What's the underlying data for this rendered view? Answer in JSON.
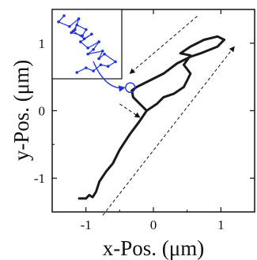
{
  "chart_data": {
    "type": "line",
    "title": "",
    "xlabel": "x-Pos. (μm)",
    "ylabel": "y-Pos. (μm)",
    "xlim": [
      -1.5,
      1.5
    ],
    "ylim": [
      -1.5,
      1.5
    ],
    "grid": false,
    "x_ticks": [
      {
        "value": -1,
        "label": "-1"
      },
      {
        "value": 0,
        "label": "0"
      },
      {
        "value": 1,
        "label": "1"
      }
    ],
    "y_ticks": [
      {
        "value": -1,
        "label": "-1"
      },
      {
        "value": 0,
        "label": "0"
      },
      {
        "value": 1,
        "label": "1"
      }
    ],
    "series": [
      {
        "color": "#1a1a1a",
        "x": [
          -1.1,
          -1.0,
          -0.95,
          -0.9,
          -0.85,
          -0.8,
          -0.7,
          -0.6,
          -0.5,
          -0.35,
          -0.2,
          -0.1,
          0.05,
          0.15,
          0.3,
          0.45,
          0.5,
          0.55,
          0.45,
          0.5,
          0.55,
          0.4,
          0.55,
          0.75,
          0.95,
          1.05,
          0.95,
          0.7,
          0.55,
          0.35,
          0.15,
          -0.05,
          -0.25,
          -0.32,
          -0.3,
          -0.2,
          -0.1
        ],
        "y": [
          -1.3,
          -1.3,
          -1.25,
          -1.28,
          -1.2,
          -1.05,
          -0.9,
          -0.78,
          -0.58,
          -0.35,
          -0.15,
          0.0,
          0.1,
          0.2,
          0.25,
          0.35,
          0.45,
          0.55,
          0.68,
          0.75,
          0.82,
          0.85,
          0.95,
          1.05,
          1.1,
          1.05,
          0.95,
          0.85,
          0.8,
          0.7,
          0.55,
          0.45,
          0.35,
          0.3,
          0.2,
          0.1,
          0.0
        ]
      }
    ],
    "inset": {
      "type": "line",
      "color": "#1f35d6",
      "x": [
        -0.342,
        -0.345,
        -0.339,
        -0.334,
        -0.336,
        -0.338,
        -0.332,
        -0.33,
        -0.335,
        -0.337,
        -0.331,
        -0.327,
        -0.333,
        -0.329,
        -0.323,
        -0.326,
        -0.329,
        -0.321,
        -0.323,
        -0.32,
        -0.314,
        -0.318,
        -0.322,
        -0.326,
        -0.33,
        -0.335
      ],
      "y": [
        0.342,
        0.338,
        0.335,
        0.34,
        0.333,
        0.331,
        0.329,
        0.333,
        0.336,
        0.332,
        0.327,
        0.33,
        0.325,
        0.321,
        0.325,
        0.32,
        0.317,
        0.319,
        0.314,
        0.317,
        0.312,
        0.309,
        0.31,
        0.306,
        0.308,
        0.305
      ]
    },
    "annotations": [
      {
        "kind": "dashed-arrow",
        "direction": "down-left",
        "x1": 0.65,
        "y1": 1.4,
        "x2": -0.35,
        "y2": 0.55
      },
      {
        "kind": "dashed-arrow",
        "direction": "down-right",
        "x1": -0.5,
        "y1": 0.1,
        "x2": -0.2,
        "y2": -0.1
      },
      {
        "kind": "dashed-arrow",
        "direction": "up-right",
        "x1": -0.75,
        "y1": -1.55,
        "x2": 1.2,
        "y2": 0.95
      }
    ]
  }
}
